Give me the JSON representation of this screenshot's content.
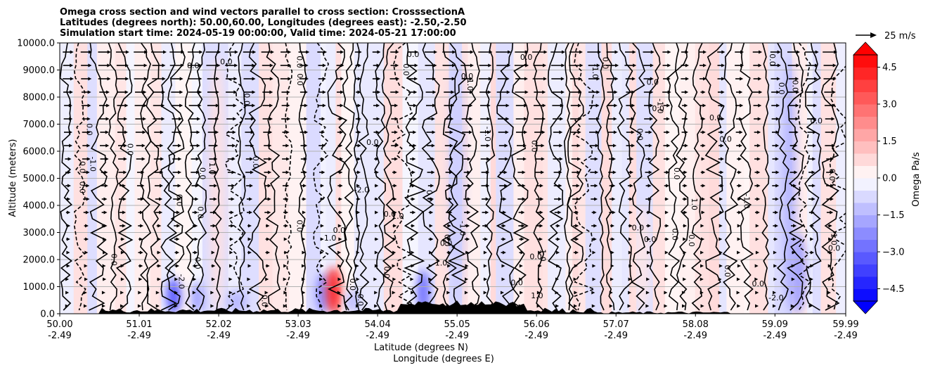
{
  "chart_data": {
    "type": "heatmap",
    "title_lines": [
      "Omega cross section and wind vectors parallel to cross section: CrosssectionA",
      "Latitudes (degrees north): 50.00,60.00, Longitudes (degrees east): -2.50,-2.50",
      "Simulation start time: 2024-05-19 00:00:00, Valid time: 2024-05-21 17:00:00"
    ],
    "ylabel": "Altitude (meters)",
    "xlabel_lines": [
      "Latitude (degrees N)",
      "Longitude (degrees E)"
    ],
    "ylim": [
      0,
      10000
    ],
    "xlim": [
      50.0,
      59.99
    ],
    "yticks": [
      0,
      1000,
      2000,
      3000,
      4000,
      5000,
      6000,
      7000,
      8000,
      9000,
      10000
    ],
    "ytick_labels": [
      "0.0",
      "1000.0",
      "2000.0",
      "3000.0",
      "4000.0",
      "5000.0",
      "6000.0",
      "7000.0",
      "8000.0",
      "9000.0",
      "10000.0"
    ],
    "xticks": [
      50.0,
      51.01,
      52.02,
      53.03,
      54.04,
      55.05,
      56.06,
      57.07,
      58.08,
      59.09,
      59.99
    ],
    "xtick_labels_lat": [
      "50.00",
      "51.01",
      "52.02",
      "53.03",
      "54.04",
      "55.05",
      "56.06",
      "57.07",
      "58.08",
      "59.09",
      "59.99"
    ],
    "xtick_labels_lon": [
      "-2.49",
      "-2.49",
      "-2.49",
      "-2.49",
      "-2.49",
      "-2.49",
      "-2.49",
      "-2.49",
      "-2.49",
      "-2.49",
      "-2.49"
    ],
    "grid": "horizontal",
    "colorbar": {
      "label": "Omega Pa/s",
      "range": [
        -5,
        5
      ],
      "tick_values": [
        -4.5,
        -3.0,
        -1.5,
        0.0,
        1.5,
        3.0,
        4.5
      ],
      "tick_labels": [
        "−4.5",
        "−3.0",
        "−1.5",
        "0.0",
        "1.5",
        "3.0",
        "4.5"
      ],
      "colormap": "bwr"
    },
    "quiver_key": {
      "label": "25 m/s",
      "speed": 25
    },
    "contour_labels": [
      "0.0",
      "1.0",
      "-1.0",
      "-2.0"
    ],
    "contour_color": "#000000",
    "terrain_color": "#000000",
    "omega_features": [
      {
        "lat": 51.45,
        "z_top": 1300,
        "value": -3.5
      },
      {
        "lat": 51.75,
        "z_top": 1200,
        "value": -2.0
      },
      {
        "lat": 52.25,
        "z_top": 900,
        "value": -1.5
      },
      {
        "lat": 53.35,
        "z_top": 1500,
        "value": -2.5
      },
      {
        "lat": 53.48,
        "z_top": 1700,
        "value": 4.5
      },
      {
        "lat": 53.72,
        "z_top": 900,
        "value": -1.5
      },
      {
        "lat": 54.62,
        "z_top": 1600,
        "value": -3.0
      },
      {
        "lat": 59.38,
        "z_top": 3000,
        "value": -2.0
      },
      {
        "lat": 59.28,
        "z_top": 9500,
        "value": -1.5
      },
      {
        "lat": 55.05,
        "z_top": 9800,
        "value": -1.0
      },
      {
        "lat": 52.0,
        "z_top": 9500,
        "value": 0.6
      },
      {
        "lat": 57.4,
        "z_top": 4000,
        "value": 0.5
      }
    ]
  }
}
